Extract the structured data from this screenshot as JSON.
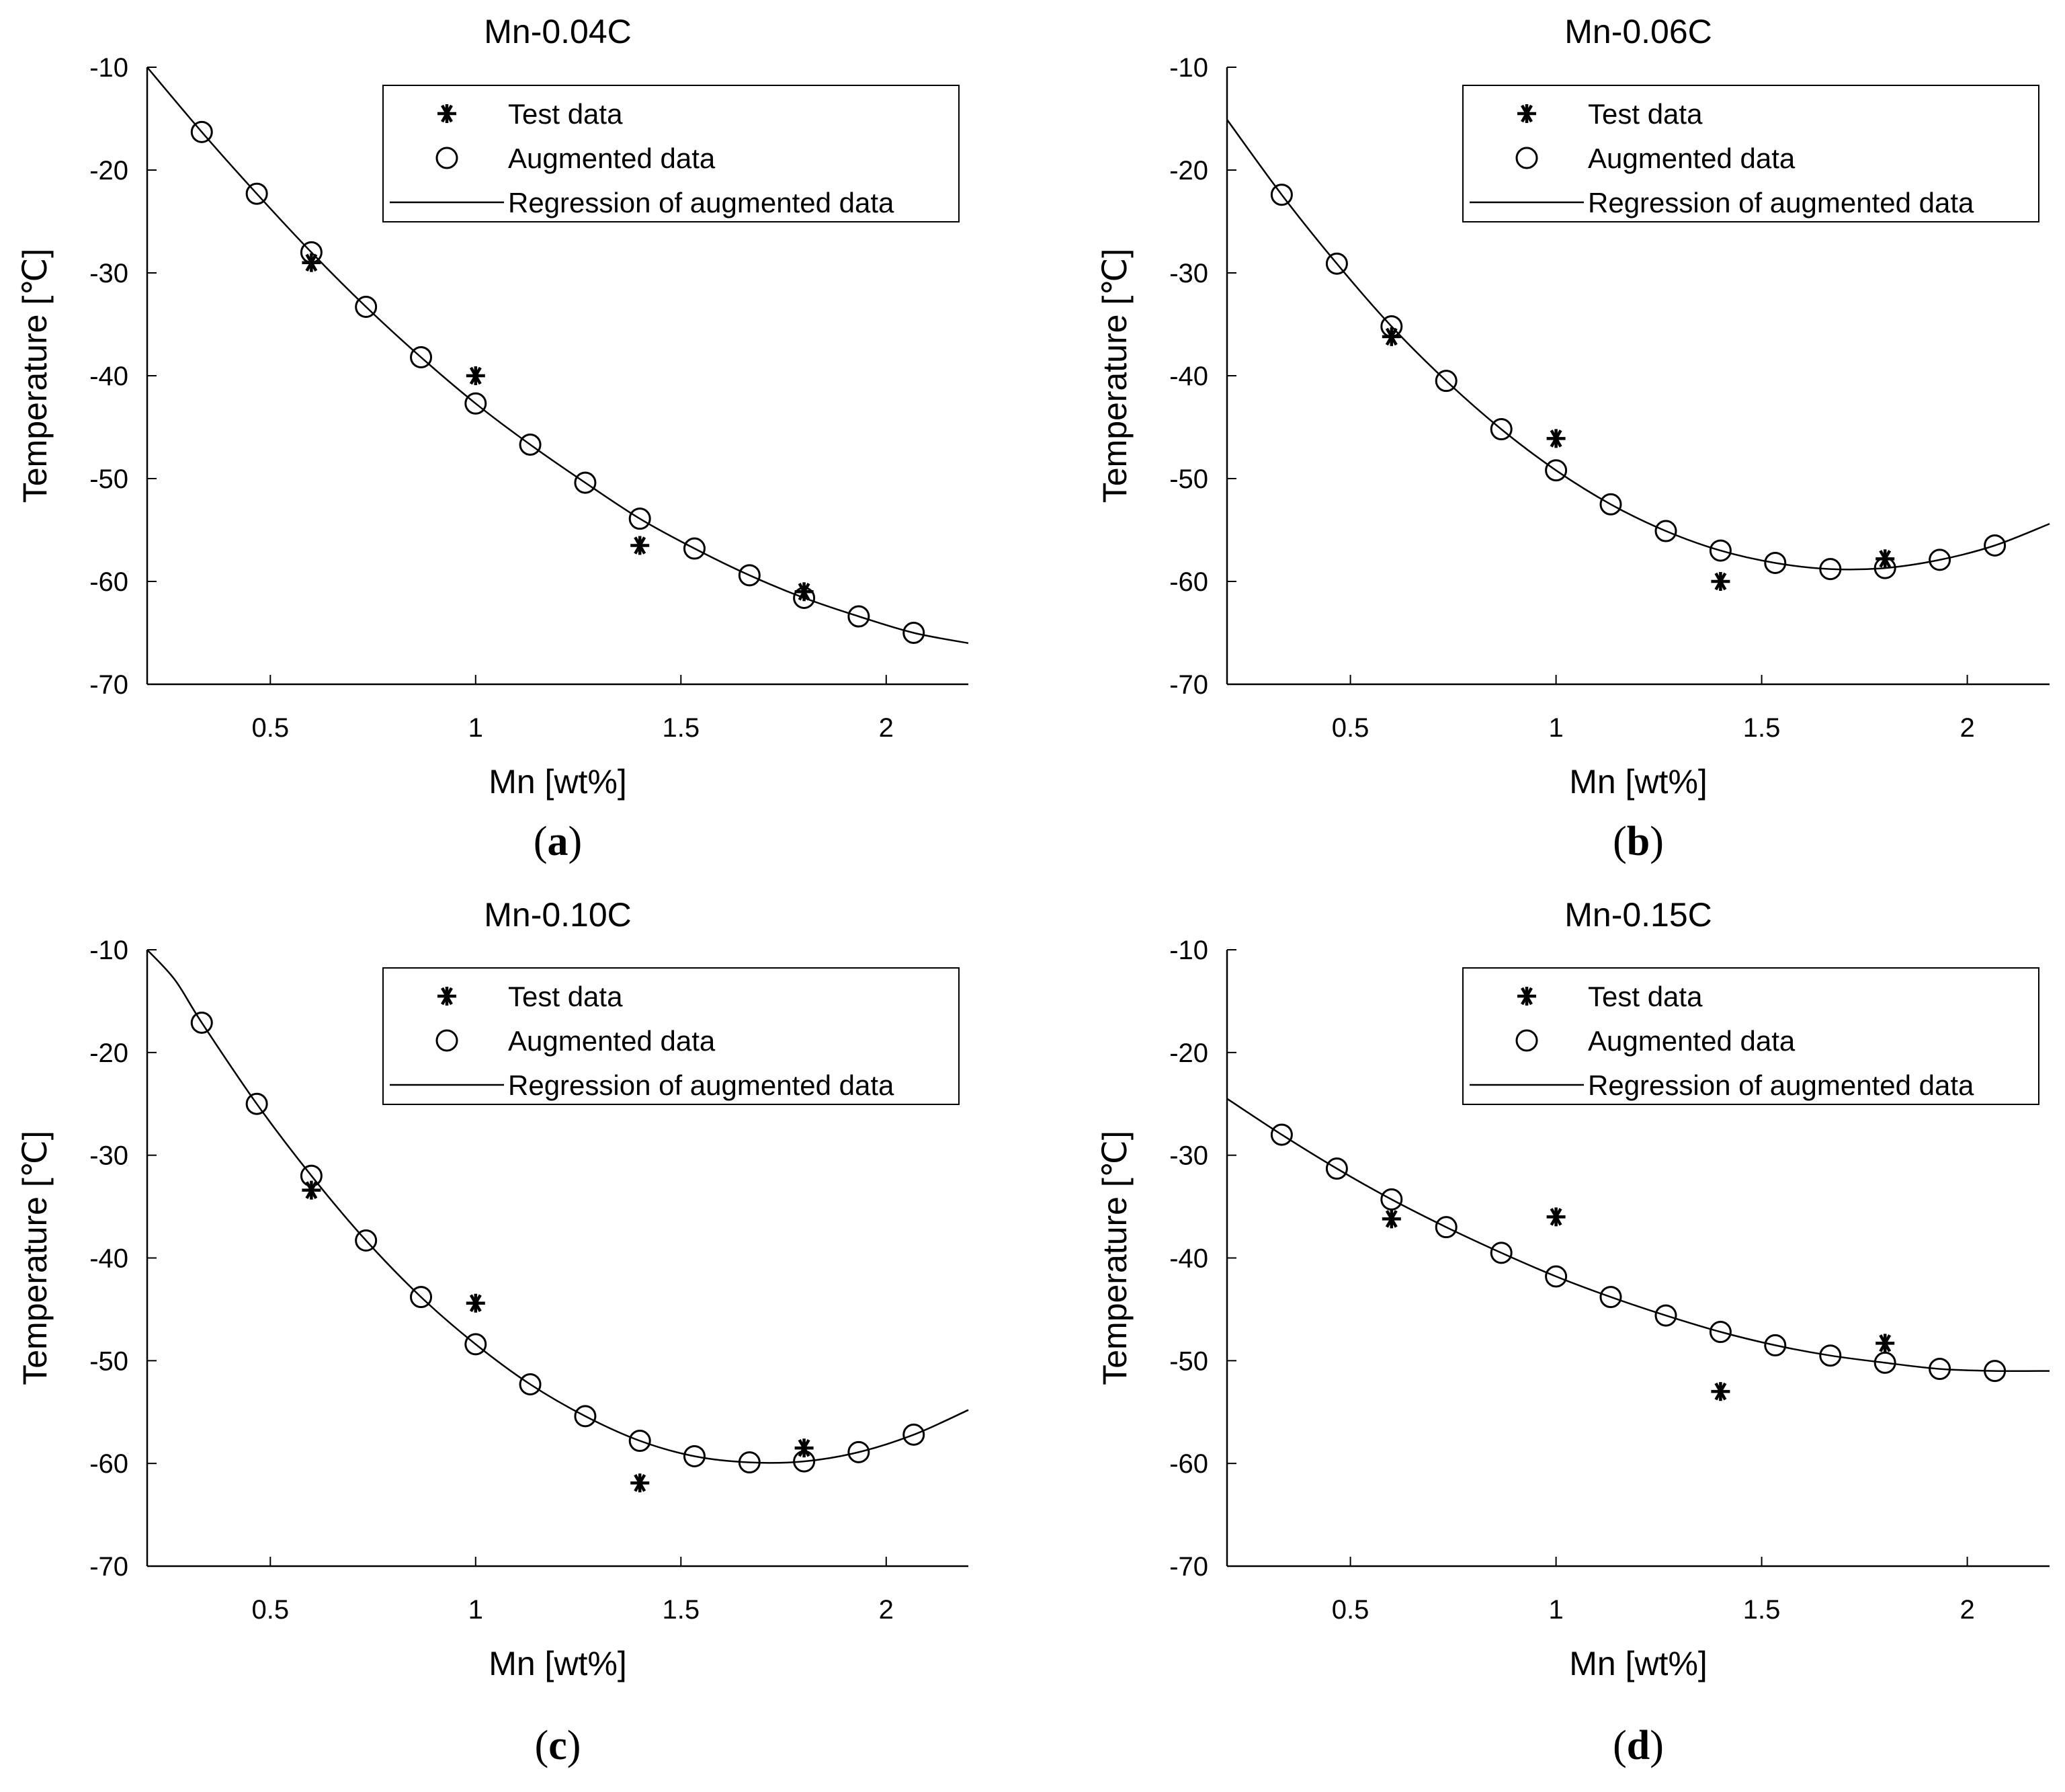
{
  "figure": {
    "legend": {
      "test_label": "Test data",
      "augmented_label": "Augmented data",
      "regression_label": "Regression of augmented data"
    },
    "colors": {
      "ink": "#000000",
      "background": "#ffffff"
    }
  },
  "chart_data": [
    {
      "id": "a",
      "type": "scatter",
      "panel_label": "(a)",
      "title": "Mn-0.04C",
      "xlabel": "Mn [wt%]",
      "ylabel": "Temperature [℃]",
      "xlim": [
        0.2,
        2.2
      ],
      "ylim": [
        -70,
        -10
      ],
      "xticks": [
        0.5,
        1,
        1.5,
        2
      ],
      "yticks": [
        -10,
        -20,
        -30,
        -40,
        -50,
        -60,
        -70
      ],
      "legend_position": "top-right",
      "series": [
        {
          "name": "Test data",
          "marker": "asterisk",
          "x": [
            0.6,
            1.0,
            1.4,
            1.8
          ],
          "y": [
            -29.0,
            -40.0,
            -56.5,
            -61.0
          ]
        },
        {
          "name": "Augmented data",
          "marker": "circle",
          "x": [
            0.333,
            0.467,
            0.6,
            0.733,
            0.867,
            1.0,
            1.133,
            1.267,
            1.4,
            1.533,
            1.667,
            1.8,
            1.933,
            2.067
          ],
          "y": [
            -16.3,
            -22.3,
            -28.0,
            -33.3,
            -38.2,
            -42.7,
            -46.7,
            -50.4,
            -53.9,
            -56.8,
            -59.4,
            -61.6,
            -63.4,
            -65.0
          ]
        },
        {
          "name": "Regression of augmented data",
          "marker": "line",
          "x": [
            0.2,
            0.333,
            0.467,
            0.6,
            0.733,
            0.867,
            1.0,
            1.133,
            1.267,
            1.4,
            1.533,
            1.667,
            1.8,
            1.933,
            2.067,
            2.2
          ],
          "y": [
            -10.0,
            -16.3,
            -22.3,
            -28.0,
            -33.3,
            -38.2,
            -42.7,
            -46.7,
            -50.4,
            -53.9,
            -56.8,
            -59.4,
            -61.6,
            -63.4,
            -65.0,
            -66.0
          ]
        }
      ]
    },
    {
      "id": "b",
      "type": "scatter",
      "panel_label": "(b)",
      "title": "Mn-0.06C",
      "xlabel": "Mn [wt%]",
      "ylabel": "Temperature [℃]",
      "xlim": [
        0.2,
        2.2
      ],
      "ylim": [
        -70,
        -10
      ],
      "xticks": [
        0.5,
        1,
        1.5,
        2
      ],
      "yticks": [
        -10,
        -20,
        -30,
        -40,
        -50,
        -60,
        -70
      ],
      "legend_position": "top-right",
      "series": [
        {
          "name": "Test data",
          "marker": "asterisk",
          "x": [
            0.6,
            1.0,
            1.4,
            1.8
          ],
          "y": [
            -36.2,
            -46.1,
            -60.0,
            -57.8
          ]
        },
        {
          "name": "Augmented data",
          "marker": "circle",
          "x": [
            0.333,
            0.467,
            0.6,
            0.733,
            0.867,
            1.0,
            1.133,
            1.267,
            1.4,
            1.533,
            1.667,
            1.8,
            1.933,
            2.067
          ],
          "y": [
            -22.4,
            -29.1,
            -35.2,
            -40.5,
            -45.2,
            -49.2,
            -52.5,
            -55.1,
            -57.0,
            -58.2,
            -58.8,
            -58.7,
            -57.9,
            -56.5
          ]
        },
        {
          "name": "Regression of augmented data",
          "marker": "line",
          "x": [
            0.2,
            0.333,
            0.467,
            0.6,
            0.733,
            0.867,
            1.0,
            1.133,
            1.267,
            1.4,
            1.533,
            1.667,
            1.8,
            1.933,
            2.067,
            2.2
          ],
          "y": [
            -15.1,
            -22.4,
            -29.1,
            -35.2,
            -40.5,
            -45.2,
            -49.2,
            -52.5,
            -55.1,
            -57.0,
            -58.2,
            -58.8,
            -58.7,
            -57.9,
            -56.5,
            -54.4
          ]
        }
      ]
    },
    {
      "id": "c",
      "type": "scatter",
      "panel_label": "(c)",
      "title": "Mn-0.10C",
      "xlabel": "Mn [wt%]",
      "ylabel": "Temperature [℃]",
      "xlim": [
        0.2,
        2.2
      ],
      "ylim": [
        -70,
        -10
      ],
      "xticks": [
        0.5,
        1,
        1.5,
        2
      ],
      "yticks": [
        -10,
        -20,
        -30,
        -40,
        -50,
        -60,
        -70
      ],
      "legend_position": "top-right",
      "series": [
        {
          "name": "Test data",
          "marker": "asterisk",
          "x": [
            0.6,
            1.0,
            1.4,
            1.8
          ],
          "y": [
            -33.4,
            -44.4,
            -61.9,
            -58.5
          ]
        },
        {
          "name": "Augmented data",
          "marker": "circle",
          "x": [
            0.333,
            0.467,
            0.6,
            0.733,
            0.867,
            1.0,
            1.133,
            1.267,
            1.4,
            1.533,
            1.667,
            1.8,
            1.933,
            2.067
          ],
          "y": [
            -17.1,
            -25.0,
            -32.0,
            -38.3,
            -43.8,
            -48.4,
            -52.3,
            -55.4,
            -57.8,
            -59.3,
            -59.9,
            -59.8,
            -58.9,
            -57.2
          ]
        },
        {
          "name": "Regression of augmented data",
          "marker": "line",
          "x": [
            0.2,
            0.267,
            0.333,
            0.467,
            0.6,
            0.733,
            0.867,
            1.0,
            1.133,
            1.267,
            1.4,
            1.533,
            1.667,
            1.8,
            1.933,
            2.067,
            2.2
          ],
          "y": [
            -10.0,
            -12.9,
            -17.1,
            -25.0,
            -32.0,
            -38.3,
            -43.8,
            -48.4,
            -52.3,
            -55.4,
            -57.8,
            -59.3,
            -59.9,
            -59.8,
            -58.9,
            -57.2,
            -54.8
          ]
        }
      ]
    },
    {
      "id": "d",
      "type": "scatter",
      "panel_label": "(d)",
      "title": "Mn-0.15C",
      "xlabel": "Mn [wt%]",
      "ylabel": "Temperature [℃]",
      "xlim": [
        0.2,
        2.2
      ],
      "ylim": [
        -70,
        -10
      ],
      "xticks": [
        0.5,
        1,
        1.5,
        2
      ],
      "yticks": [
        -10,
        -20,
        -30,
        -40,
        -50,
        -60,
        -70
      ],
      "legend_position": "top-right",
      "series": [
        {
          "name": "Test data",
          "marker": "asterisk",
          "x": [
            0.6,
            1.0,
            1.4,
            1.8
          ],
          "y": [
            -36.2,
            -36.0,
            -53.0,
            -48.3
          ]
        },
        {
          "name": "Augmented data",
          "marker": "circle",
          "x": [
            0.333,
            0.467,
            0.6,
            0.733,
            0.867,
            1.0,
            1.133,
            1.267,
            1.4,
            1.533,
            1.667,
            1.8,
            1.933,
            2.067
          ],
          "y": [
            -28.0,
            -31.3,
            -34.3,
            -37.0,
            -39.5,
            -41.8,
            -43.8,
            -45.6,
            -47.2,
            -48.5,
            -49.5,
            -50.2,
            -50.8,
            -51.0
          ]
        },
        {
          "name": "Regression of augmented data",
          "marker": "line",
          "x": [
            0.2,
            0.333,
            0.467,
            0.6,
            0.733,
            0.867,
            1.0,
            1.133,
            1.267,
            1.4,
            1.533,
            1.667,
            1.8,
            1.933,
            2.067,
            2.2
          ],
          "y": [
            -24.5,
            -28.0,
            -31.3,
            -34.3,
            -37.0,
            -39.5,
            -41.8,
            -43.8,
            -45.6,
            -47.2,
            -48.5,
            -49.5,
            -50.2,
            -50.8,
            -51.0,
            -51.0
          ]
        }
      ]
    }
  ]
}
